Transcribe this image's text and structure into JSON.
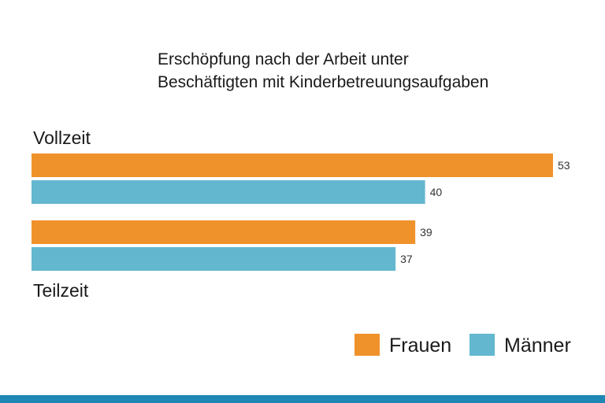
{
  "chart_data": {
    "type": "bar",
    "orientation": "horizontal",
    "title": [
      "Erschöpfung nach der Arbeit unter",
      "Beschäftigten mit Kinderbetreuungsaufgaben"
    ],
    "categories": [
      "Vollzeit",
      "Teilzeit"
    ],
    "series": [
      {
        "name": "Frauen",
        "values": [
          53,
          39
        ],
        "color": "#f0922b"
      },
      {
        "name": "Männer",
        "values": [
          40,
          37
        ],
        "color": "#63b7cf"
      }
    ],
    "xlim": [
      0,
      53
    ],
    "grid": false,
    "legend_position": "bottom-right",
    "value_labels": true
  },
  "footer_bar_color": "#1e87b4"
}
